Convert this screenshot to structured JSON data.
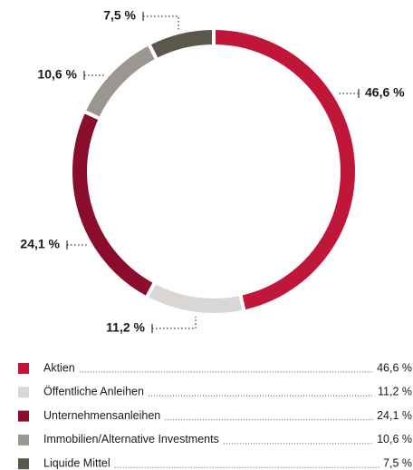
{
  "chart_data": {
    "type": "donut",
    "categories": [
      "Aktien",
      "Öffentliche Anleihen",
      "Unternehmensanleihen",
      "Immobilien/Alternative Investments",
      "Liquide Mittel"
    ],
    "values": [
      46.6,
      11.2,
      24.1,
      10.6,
      7.5
    ],
    "value_labels": [
      "46,6 %",
      "11,2 %",
      "24,1 %",
      "10,6 %",
      "7,5 %"
    ],
    "colors": [
      "#c0163a",
      "#d9d6d3",
      "#8b0d2c",
      "#9a9690",
      "#5a574b"
    ]
  }
}
